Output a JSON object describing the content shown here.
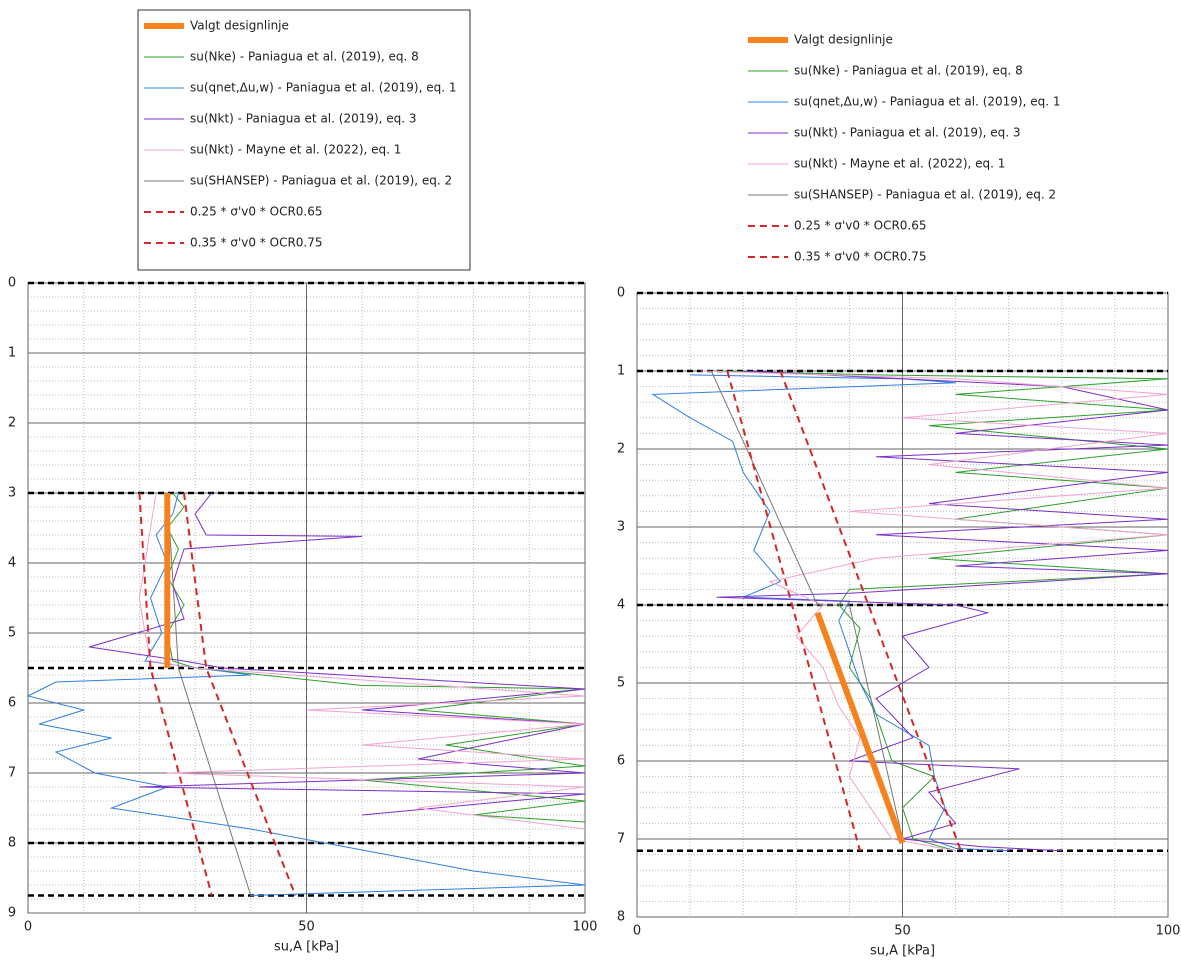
{
  "chart_data": [
    {
      "type": "line",
      "xlabel": "su,A [kPa]",
      "xlim": [
        0,
        100
      ],
      "xticks": [
        0,
        50,
        100
      ],
      "ylim": [
        0,
        9
      ],
      "yticks": [
        0,
        1,
        2,
        3,
        4,
        5,
        6,
        7,
        8,
        9
      ],
      "y_inverted": true,
      "grid": true,
      "layer_boundaries": [
        0,
        3,
        5.5,
        8,
        8.75
      ],
      "series": [
        {
          "name": "Valgt designlinje",
          "color": "#f5821f",
          "width": 6,
          "dash": false,
          "x": [
            25,
            25
          ],
          "y": [
            3,
            5.5
          ]
        },
        {
          "name": "su(Nke) - Paniagua et al. (2019), eq. 8",
          "color": "#2ca02c",
          "width": 1,
          "dash": false,
          "x": [
            26,
            28,
            25,
            27,
            25,
            28,
            25,
            26,
            30,
            60,
            100,
            70,
            100,
            75,
            100,
            60,
            100,
            80,
            100
          ],
          "y": [
            3,
            3.2,
            3.5,
            3.8,
            4.2,
            4.6,
            5,
            5.4,
            5.5,
            5.75,
            5.8,
            6.1,
            6.3,
            6.6,
            6.9,
            7.1,
            7.4,
            7.6,
            7.7
          ]
        },
        {
          "name": "su(qnet,Δu,w) - Paniagua et al. (2019), eq. 1",
          "color": "#2f7fe0",
          "width": 1,
          "dash": false,
          "x": [
            27,
            26,
            23,
            25,
            22,
            24,
            21,
            40,
            5,
            0,
            10,
            2,
            15,
            5,
            12,
            25,
            15,
            40,
            60,
            80,
            100,
            40
          ],
          "y": [
            3,
            3.3,
            3.6,
            4,
            4.5,
            5,
            5.4,
            5.6,
            5.7,
            5.9,
            6.1,
            6.3,
            6.5,
            6.7,
            7,
            7.2,
            7.5,
            7.8,
            8.1,
            8.4,
            8.6,
            8.75
          ]
        },
        {
          "name": "su(Nkt) - Paniagua et al. (2019), eq. 3",
          "color": "#7b2fc9",
          "width": 1,
          "dash": false,
          "x": [
            33,
            30,
            32,
            60,
            28,
            26,
            28,
            11,
            28,
            35,
            100,
            60,
            100,
            70,
            100,
            20,
            100,
            60
          ],
          "y": [
            3,
            3.3,
            3.6,
            3.62,
            3.8,
            4.3,
            4.8,
            5.2,
            5.4,
            5.5,
            5.8,
            6.1,
            6.3,
            6.8,
            7,
            7.2,
            7.3,
            7.6
          ]
        },
        {
          "name": "su(Nkt) - Mayne et al. (2022), eq. 1",
          "color": "#f4a3d0",
          "width": 1,
          "dash": false,
          "x": [
            23,
            22,
            21,
            20,
            21,
            22,
            30,
            100,
            50,
            100,
            60,
            100,
            25,
            100,
            70,
            100
          ],
          "y": [
            3,
            3.5,
            4,
            4.5,
            5,
            5.4,
            5.5,
            5.9,
            6.1,
            6.3,
            6.6,
            6.8,
            7,
            7.2,
            7.5,
            7.8
          ]
        },
        {
          "name": "su(SHANSEP) - Paniagua et al. (2019), eq. 2",
          "color": "#777777",
          "width": 1,
          "dash": false,
          "x": [
            25,
            27,
            40
          ],
          "y": [
            3,
            5.5,
            8.75
          ]
        },
        {
          "name": "0.25 * σ'v0 * OCR0.65",
          "color": "#d62728",
          "width": 2,
          "dash": true,
          "x": [
            20,
            22,
            33
          ],
          "y": [
            3,
            5.5,
            8.75
          ]
        },
        {
          "name": "0.35 * σ'v0 * OCR0.75",
          "color": "#d62728",
          "width": 2,
          "dash": true,
          "x": [
            28,
            32,
            48
          ],
          "y": [
            3,
            5.5,
            8.75
          ]
        }
      ]
    },
    {
      "type": "line",
      "xlabel": "su,A [kPa]",
      "xlim": [
        0,
        100
      ],
      "xticks": [
        0,
        50,
        100
      ],
      "ylim": [
        0,
        8
      ],
      "yticks": [
        0,
        1,
        2,
        3,
        4,
        5,
        6,
        7,
        8
      ],
      "y_inverted": true,
      "grid": true,
      "layer_boundaries": [
        0,
        1,
        4,
        7.15
      ],
      "series": [
        {
          "name": "Valgt designlinje",
          "color": "#f5821f",
          "width": 6,
          "dash": false,
          "x": [
            34,
            50
          ],
          "y": [
            4.1,
            7.05
          ]
        },
        {
          "name": "su(Nke) - Paniagua et al. (2019), eq. 8",
          "color": "#2ca02c",
          "width": 1,
          "dash": false,
          "x": [
            15,
            45,
            100,
            60,
            100,
            55,
            100,
            60,
            100,
            60,
            100,
            55,
            100,
            40,
            38,
            42,
            40,
            44,
            46,
            48,
            56,
            50,
            52,
            60
          ],
          "y": [
            1,
            1.05,
            1.1,
            1.3,
            1.5,
            1.7,
            2,
            2.3,
            2.5,
            2.9,
            3.1,
            3.4,
            3.6,
            3.8,
            4,
            4.3,
            4.8,
            5.2,
            5.6,
            6,
            6.2,
            6.6,
            7,
            7.15
          ]
        },
        {
          "name": "su(qnet,Δu,w) - Paniagua et al. (2019), eq. 1",
          "color": "#2f7fe0",
          "width": 1,
          "dash": false,
          "x": [
            10,
            50,
            60,
            3,
            10,
            18,
            20,
            25,
            22,
            27,
            20,
            40,
            38,
            40,
            42,
            45,
            55,
            56,
            58,
            55,
            60,
            70
          ],
          "y": [
            1.05,
            1.1,
            1.15,
            1.3,
            1.6,
            1.9,
            2.3,
            2.8,
            3.3,
            3.7,
            3.9,
            3.95,
            4.2,
            4.6,
            5,
            5.4,
            5.8,
            6.2,
            6.6,
            7,
            7.12,
            7.15
          ]
        },
        {
          "name": "su(Nkt) - Paniagua et al. (2019), eq. 3",
          "color": "#7b2fc9",
          "width": 1,
          "dash": false,
          "x": [
            20,
            80,
            100,
            60,
            100,
            45,
            100,
            55,
            100,
            45,
            100,
            60,
            100,
            40,
            15,
            60,
            66,
            50,
            55,
            45,
            52,
            40,
            72,
            55,
            60,
            50,
            65,
            80
          ],
          "y": [
            1,
            1.2,
            1.5,
            1.8,
            1.95,
            2.1,
            2.3,
            2.7,
            2.9,
            3.1,
            3.3,
            3.5,
            3.6,
            3.85,
            3.9,
            4,
            4.1,
            4.4,
            4.8,
            5.2,
            5.7,
            6,
            6.1,
            6.4,
            6.8,
            7,
            7.1,
            7.15
          ]
        },
        {
          "name": "su(Nkt) - Mayne et al. (2022), eq. 1",
          "color": "#f4a3d0",
          "width": 1,
          "dash": false,
          "x": [
            12,
            60,
            100,
            50,
            100,
            55,
            100,
            40,
            100,
            45,
            25,
            35,
            30,
            35,
            38,
            42,
            40,
            44,
            48,
            60
          ],
          "y": [
            1,
            1.1,
            1.3,
            1.6,
            1.8,
            2.2,
            2.5,
            2.8,
            3.1,
            3.4,
            3.7,
            4,
            4.4,
            4.8,
            5.3,
            5.7,
            6.2,
            6.6,
            7,
            7.15
          ]
        },
        {
          "name": "su(SHANSEP) - Paniagua et al. (2019), eq. 2",
          "color": "#777777",
          "width": 1,
          "dash": false,
          "x": [
            14,
            34,
            40,
            50
          ],
          "y": [
            1,
            4,
            4,
            7
          ]
        },
        {
          "name": "0.25 * σ'v0 * OCR0.65",
          "color": "#d62728",
          "width": 2,
          "dash": true,
          "x": [
            17,
            42
          ],
          "y": [
            1,
            7.15
          ]
        },
        {
          "name": "0.35 * σ'v0 * OCR0.75",
          "color": "#d62728",
          "width": 2,
          "dash": true,
          "x": [
            27,
            61
          ],
          "y": [
            1,
            7.15
          ]
        }
      ]
    }
  ]
}
